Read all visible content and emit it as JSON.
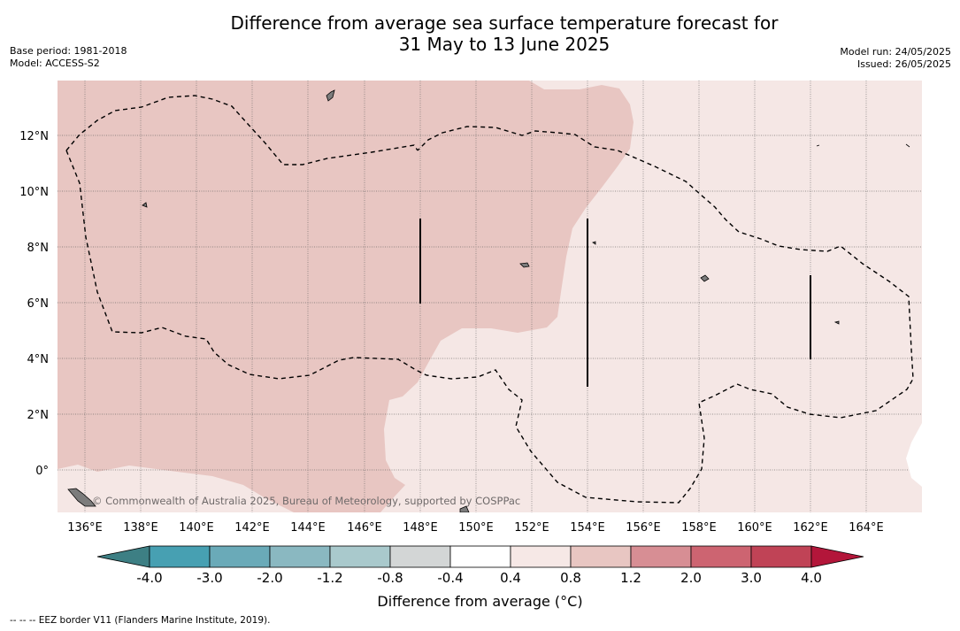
{
  "title": {
    "line1": "Difference from average sea surface temperature forecast for",
    "line2": "31 May to 13 June 2025"
  },
  "meta_left": {
    "base_period": "Base period: 1981-2018",
    "model": "Model: ACCESS-S2"
  },
  "meta_right": {
    "model_run": "Model run: 24/05/2025",
    "issued": "Issued: 26/05/2025"
  },
  "map": {
    "lon_range": [
      135,
      166
    ],
    "lat_range": [
      -1.5,
      14
    ],
    "x_ticks": [
      "136°E",
      "138°E",
      "140°E",
      "142°E",
      "144°E",
      "146°E",
      "148°E",
      "150°E",
      "152°E",
      "154°E",
      "156°E",
      "158°E",
      "160°E",
      "162°E",
      "164°E"
    ],
    "y_ticks": [
      "12°N",
      "10°N",
      "8°N",
      "6°N",
      "4°N",
      "2°N",
      "0°"
    ],
    "attribution": "© Commonwealth of Australia 2025, Bureau of Meteorology, supported by COSPPac",
    "colors": {
      "anomaly_0_8_to_1_2": "#e8c6c2",
      "anomaly_0_4_to_0_8": "#f5e7e5",
      "land": "#7c7c7c",
      "eez_border": "#000000"
    }
  },
  "colorbar": {
    "label": "Difference from average (°C)",
    "tick_labels": [
      "-4.0",
      "-3.0",
      "-2.0",
      "-1.2",
      "-0.8",
      "-0.4",
      "0.4",
      "0.8",
      "1.2",
      "2.0",
      "3.0",
      "4.0"
    ],
    "colors": [
      "#47a0b2",
      "#6aaab8",
      "#8ab8c1",
      "#a9c9cc",
      "#d3d6d6",
      "#ffffff",
      "#f6e8e6",
      "#e8c6c2",
      "#d78e94",
      "#cd6471",
      "#c04356"
    ],
    "extend_low_color": "#3d7f84",
    "extend_high_color": "#b3163a"
  },
  "footnote": "--  --  -- EEZ border V11 (Flanders Marine Institute, 2019)."
}
